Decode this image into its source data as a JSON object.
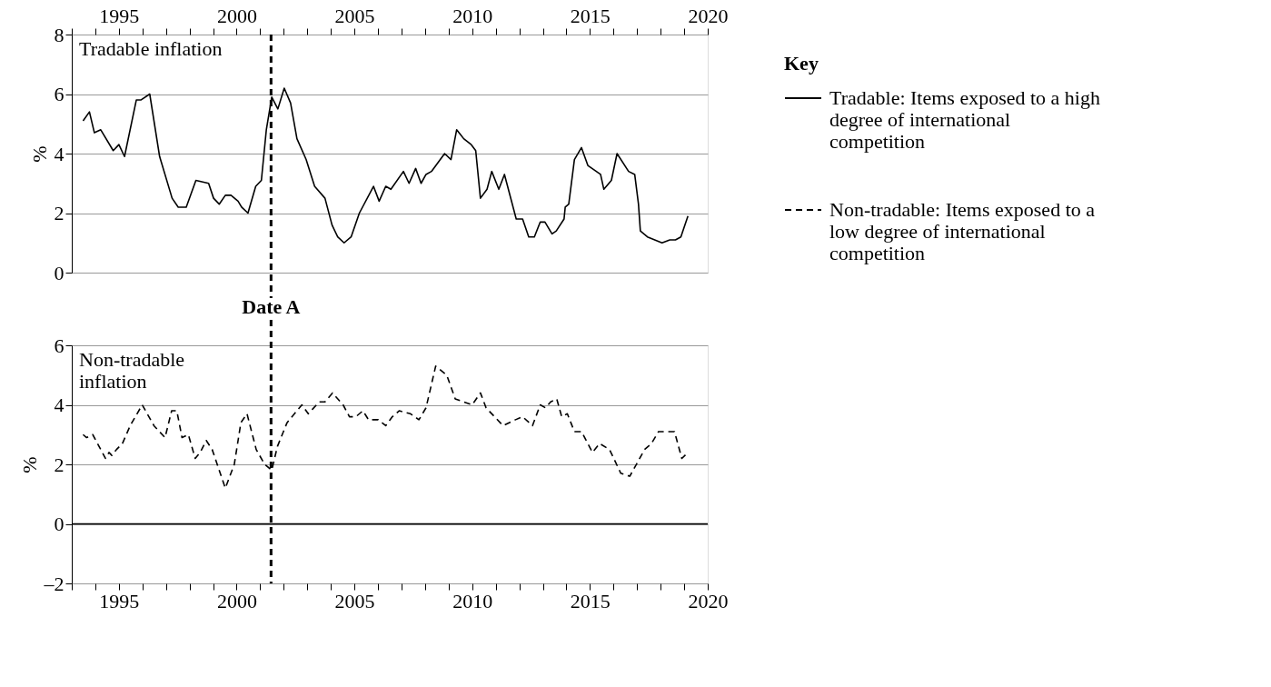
{
  "chart_data": [
    {
      "type": "line",
      "ylabel": "%",
      "xlim": [
        1993,
        2020
      ],
      "ylim": [
        0,
        8
      ],
      "yticks": [
        0,
        2,
        4,
        6,
        8
      ],
      "grid": "y",
      "legend": "right",
      "legend_title": "Key",
      "annotations": [
        "Tradable inflation"
      ],
      "xticks": [
        {
          "value": 1993,
          "label": null
        },
        {
          "value": 1994,
          "label": null
        },
        1995,
        {
          "value": 1996,
          "label": null
        },
        {
          "value": 1997,
          "label": null
        },
        {
          "value": 1998,
          "label": null
        },
        {
          "value": 1999,
          "label": null
        },
        2000,
        {
          "value": 2001,
          "label": null
        },
        {
          "value": 2002,
          "label": null
        },
        {
          "value": 2003,
          "label": null
        },
        {
          "value": 2004,
          "label": null
        },
        2005,
        {
          "value": 2006,
          "label": null
        },
        {
          "value": 2007,
          "label": null
        },
        {
          "value": 2008,
          "label": null
        },
        {
          "value": 2009,
          "label": null
        },
        2010,
        {
          "value": 2011,
          "label": null
        },
        {
          "value": 2012,
          "label": null
        },
        {
          "value": 2013,
          "label": null
        },
        {
          "value": 2014,
          "label": null
        },
        2015,
        {
          "value": 2016,
          "label": null
        },
        {
          "value": 2017,
          "label": null
        },
        {
          "value": 2018,
          "label": null
        },
        {
          "value": 2019,
          "label": null
        },
        2020
      ],
      "ref_lines": [
        {
          "axis": "x",
          "value": 2001.46,
          "color": "#000000",
          "line_style": "dashed"
        }
      ],
      "series": [
        {
          "name": "Tradable: Items exposed to a high degree of international competition",
          "color": "#000000",
          "line_style": "solid",
          "x": [
            1993.48,
            1993.75,
            1993.96,
            1994.23,
            1994.76,
            1995.0,
            1995.24,
            1995.74,
            1995.93,
            1996.31,
            1996.73,
            1997.26,
            1997.52,
            1997.86,
            1998.27,
            1998.81,
            1999.02,
            1999.26,
            1999.52,
            1999.76,
            2000.06,
            2000.21,
            2000.48,
            2000.81,
            2001.05,
            2001.26,
            2001.49,
            2001.75,
            2002.02,
            2002.29,
            2002.56,
            2002.95,
            2003.31,
            2003.75,
            2004.05,
            2004.29,
            2004.56,
            2004.86,
            2005.21,
            2005.81,
            2006.05,
            2006.33,
            2006.55,
            2007.08,
            2007.32,
            2007.6,
            2007.83,
            2008.04,
            2008.27,
            2008.83,
            2009.1,
            2009.34,
            2009.64,
            2009.96,
            2010.15,
            2010.35,
            2010.63,
            2010.83,
            2011.13,
            2011.37,
            2011.87,
            2012.14,
            2012.4,
            2012.64,
            2012.89,
            2013.09,
            2013.39,
            2013.57,
            2013.9,
            2013.95,
            2014.1,
            2014.34,
            2014.64,
            2014.91,
            2015.45,
            2015.59,
            2015.91,
            2016.15,
            2016.64,
            2016.9,
            2017.06,
            2017.14,
            2017.44,
            2018.06,
            2018.39,
            2018.63,
            2018.86,
            2019.16
          ],
          "values": [
            5.1,
            5.4,
            4.7,
            4.8,
            4.1,
            4.3,
            3.9,
            5.8,
            5.8,
            6.0,
            3.9,
            2.5,
            2.2,
            2.2,
            3.1,
            3.0,
            2.5,
            2.3,
            2.6,
            2.6,
            2.4,
            2.2,
            2.0,
            2.9,
            3.1,
            4.8,
            5.9,
            5.5,
            6.2,
            5.7,
            4.5,
            3.8,
            2.9,
            2.5,
            1.6,
            1.2,
            1.0,
            1.2,
            2.0,
            2.9,
            2.4,
            2.9,
            2.8,
            3.4,
            3.0,
            3.5,
            3.0,
            3.3,
            3.4,
            4.0,
            3.8,
            4.8,
            4.5,
            4.3,
            4.1,
            2.5,
            2.8,
            3.4,
            2.8,
            3.3,
            1.8,
            1.8,
            1.2,
            1.2,
            1.7,
            1.7,
            1.3,
            1.4,
            1.8,
            2.2,
            2.3,
            3.8,
            4.2,
            3.6,
            3.3,
            2.8,
            3.1,
            4.0,
            3.4,
            3.3,
            2.3,
            1.4,
            1.2,
            1.0,
            1.1,
            1.1,
            1.2,
            1.9
          ]
        }
      ]
    },
    {
      "type": "line",
      "ylabel": "%",
      "xlim": [
        1993,
        2020
      ],
      "ylim": [
        -2,
        6
      ],
      "legend": "right",
      "yticks": [
        {
          "value": -2,
          "label": "–2"
        },
        0,
        2,
        4,
        6
      ],
      "grid": "y",
      "annotations": [
        "Non-tradable\ninflation"
      ],
      "xticks": [
        {
          "value": 1993,
          "label": null
        },
        {
          "value": 1994,
          "label": null
        },
        1995,
        {
          "value": 1996,
          "label": null
        },
        {
          "value": 1997,
          "label": null
        },
        {
          "value": 1998,
          "label": null
        },
        {
          "value": 1999,
          "label": null
        },
        2000,
        {
          "value": 2001,
          "label": null
        },
        {
          "value": 2002,
          "label": null
        },
        {
          "value": 2003,
          "label": null
        },
        {
          "value": 2004,
          "label": null
        },
        2005,
        {
          "value": 2006,
          "label": null
        },
        {
          "value": 2007,
          "label": null
        },
        {
          "value": 2008,
          "label": null
        },
        {
          "value": 2009,
          "label": null
        },
        2010,
        {
          "value": 2011,
          "label": null
        },
        {
          "value": 2012,
          "label": null
        },
        {
          "value": 2013,
          "label": null
        },
        {
          "value": 2014,
          "label": null
        },
        2015,
        {
          "value": 2016,
          "label": null
        },
        {
          "value": 2017,
          "label": null
        },
        {
          "value": 2018,
          "label": null
        },
        {
          "value": 2019,
          "label": null
        },
        2020
      ],
      "ref_lines": [
        {
          "axis": "x",
          "value": 2001.46,
          "label": "Date A",
          "color": "#000000",
          "line_style": "dashed"
        },
        {
          "axis": "y",
          "value": 0,
          "color": "#000000",
          "line_style": "solid"
        }
      ],
      "series": [
        {
          "name": "Non-tradable: Items exposed to a low degree of international competition",
          "color": "#000000",
          "line_style": "dashed",
          "x": [
            1993.48,
            1993.63,
            1993.89,
            1994.43,
            1994.58,
            1994.7,
            1994.9,
            1995.15,
            1995.48,
            1995.99,
            1996.49,
            1996.96,
            1997.24,
            1997.46,
            1997.68,
            1997.95,
            1998.24,
            1998.45,
            1998.71,
            1998.96,
            1999.52,
            1999.9,
            2000.18,
            2000.44,
            2000.83,
            2001.19,
            2001.49,
            2001.73,
            2002.14,
            2002.77,
            2003.04,
            2003.51,
            2003.75,
            2004.07,
            2004.52,
            2004.79,
            2005.06,
            2005.36,
            2005.6,
            2006.01,
            2006.33,
            2006.61,
            2006.9,
            2007.38,
            2007.74,
            2008.04,
            2008.45,
            2008.92,
            2009.28,
            2010.0,
            2010.35,
            2010.59,
            2011.31,
            2011.84,
            2012.14,
            2012.56,
            2012.89,
            2013.11,
            2013.33,
            2013.59,
            2013.8,
            2014.04,
            2014.34,
            2014.64,
            2015.11,
            2015.41,
            2015.83,
            2016.31,
            2016.69,
            2017.32,
            2017.61,
            2017.91,
            2018.33,
            2018.59,
            2018.9,
            2019.16
          ],
          "values": [
            3.0,
            2.9,
            3.0,
            2.2,
            2.4,
            2.3,
            2.5,
            2.7,
            3.3,
            4.0,
            3.3,
            2.9,
            3.8,
            3.8,
            2.9,
            3.0,
            2.2,
            2.4,
            2.8,
            2.5,
            1.2,
            2.0,
            3.4,
            3.7,
            2.5,
            2.0,
            1.8,
            2.6,
            3.4,
            4.0,
            3.7,
            4.1,
            4.1,
            4.4,
            4.0,
            3.6,
            3.6,
            3.8,
            3.5,
            3.5,
            3.3,
            3.6,
            3.8,
            3.7,
            3.5,
            3.9,
            5.3,
            5.0,
            4.2,
            4.0,
            4.4,
            3.9,
            3.3,
            3.5,
            3.6,
            3.3,
            4.0,
            3.9,
            4.1,
            4.2,
            3.6,
            3.7,
            3.1,
            3.1,
            2.4,
            2.7,
            2.5,
            1.7,
            1.6,
            2.5,
            2.7,
            3.1,
            3.1,
            3.1,
            2.2,
            2.4
          ]
        }
      ]
    }
  ]
}
